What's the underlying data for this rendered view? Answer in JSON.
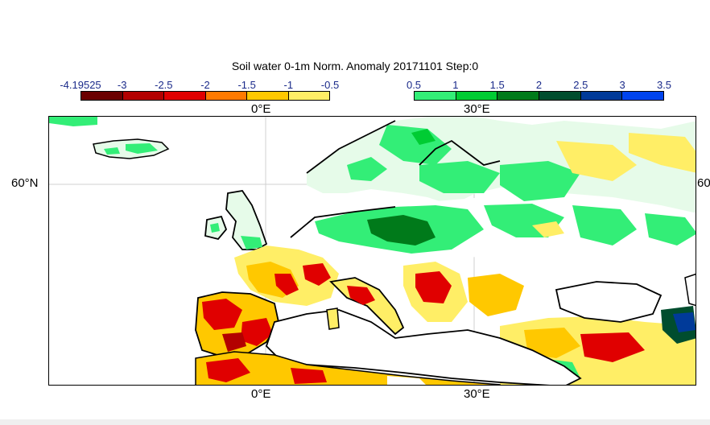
{
  "title": "Soil water 0-1m Norm. Anomaly 20171101 Step:0",
  "legend_negative": {
    "labels": [
      "-4.19525",
      "-3",
      "-2.5",
      "-2",
      "-1.5",
      "-1",
      "-0.5"
    ],
    "colors": [
      "#6b0000",
      "#b30000",
      "#e00000",
      "#ff7a00",
      "#ffc800",
      "#ffee66"
    ]
  },
  "legend_positive": {
    "labels": [
      "0.5",
      "1",
      "1.5",
      "2",
      "2.5",
      "3",
      "3.5"
    ],
    "colors": [
      "#33ee77",
      "#00cc33",
      "#007a1a",
      "#004d2e",
      "#003a99",
      "#0044ee"
    ]
  },
  "axis": {
    "lon_top": "0°E",
    "lon_top_2": "30°E",
    "lon_bottom": "0°E",
    "lon_bottom_2": "30°E",
    "lat_left": "60°N",
    "lat_right": "60"
  },
  "map": {
    "region": "Europe",
    "variable": "Soil water 0-1m normalized anomaly",
    "date": "20171101",
    "step": "0"
  }
}
